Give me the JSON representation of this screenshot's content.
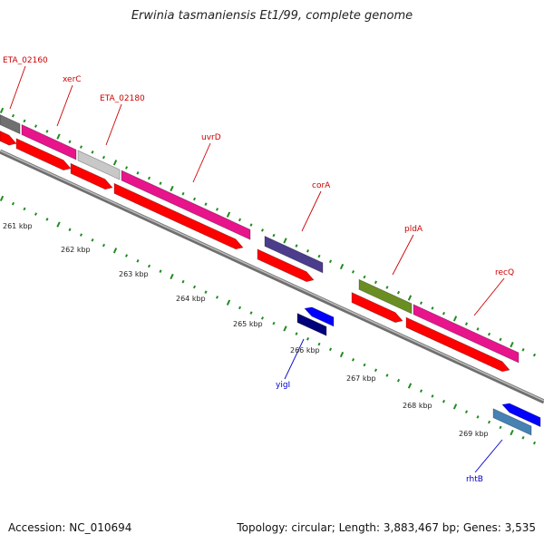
{
  "title": "Erwinia tasmaniensis Et1/99, complete genome",
  "footer": {
    "accession": "Accession: NC_010694",
    "topology": "Topology: circular; Length: 3,883,467 bp; Genes: 3,535"
  },
  "colors": {
    "forward_label": "#cc0000",
    "reverse_label": "#0000cc",
    "tick": "#228b22",
    "backbone": "#8c8c8c"
  },
  "tick_labels": [
    "261 kbp",
    "262 kbp",
    "263 kbp",
    "264 kbp",
    "265 kbp",
    "266 kbp",
    "267 kbp",
    "268 kbp",
    "269 kbp"
  ],
  "gene_labels": [
    {
      "text": "ETA_02160",
      "strand": "forward"
    },
    {
      "text": "xerC",
      "strand": "forward"
    },
    {
      "text": "ETA_02180",
      "strand": "forward"
    },
    {
      "text": "uvrD",
      "strand": "forward"
    },
    {
      "text": "corA",
      "strand": "forward"
    },
    {
      "text": "pldA",
      "strand": "forward"
    },
    {
      "text": "recQ",
      "strand": "forward"
    },
    {
      "text": "yigI",
      "strand": "reverse"
    },
    {
      "text": "rhtB",
      "strand": "reverse"
    }
  ],
  "features": [
    {
      "name": "ETA_02160-cog",
      "color": "#707070"
    },
    {
      "name": "xerC-cog",
      "color": "#e8148c"
    },
    {
      "name": "ETA_02180-cog",
      "color": "#c8c8c8"
    },
    {
      "name": "uvrD-cog",
      "color": "#e8148c"
    },
    {
      "name": "corA-cog",
      "color": "#4b3c8c"
    },
    {
      "name": "pldA-cog",
      "color": "#6b8e23"
    },
    {
      "name": "recQ-cog",
      "color": "#e8148c"
    },
    {
      "name": "yigI-cog",
      "color": "#00007a"
    },
    {
      "name": "rhtB-cog",
      "color": "#4682b4"
    },
    {
      "name": "forward-cds",
      "color": "#ff0000"
    },
    {
      "name": "reverse-cds",
      "color": "#0000ff"
    }
  ]
}
